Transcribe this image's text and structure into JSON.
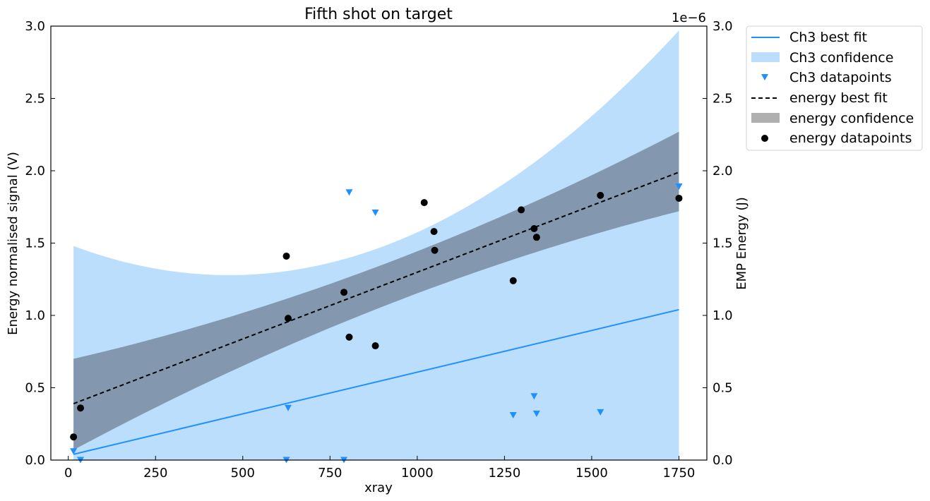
{
  "chart_data": {
    "type": "scatter",
    "title": "Fifth shot on target",
    "xlabel": "xray",
    "ylabel": "Energy normalised signal (V)",
    "ylabel_right": "EMP Energy (J)",
    "right_axis_offset": "1e−6",
    "xlim": [
      -50,
      1830
    ],
    "ylim": [
      0,
      3.0
    ],
    "ylim_right": [
      0,
      3.0
    ],
    "x_ticks": [
      0,
      250,
      500,
      750,
      1000,
      1250,
      1500,
      1750
    ],
    "x_tick_labels": [
      "0",
      "250",
      "500",
      "750",
      "1000",
      "1250",
      "1500",
      "1750"
    ],
    "y_ticks": [
      0,
      0.5,
      1.0,
      1.5,
      2.0,
      2.5,
      3.0
    ],
    "y_tick_labels": [
      "0.0",
      "0.5",
      "1.0",
      "1.5",
      "2.0",
      "2.5",
      "3.0"
    ],
    "y_right_ticks": [
      0,
      0.5,
      1.0,
      1.5,
      2.0,
      2.5,
      3.0
    ],
    "y_right_tick_labels": [
      "0.0",
      "0.5",
      "1.0",
      "1.5",
      "2.0",
      "2.5",
      "3.0"
    ],
    "grid": false,
    "legend_position": "outside-right-top",
    "colors": {
      "ch3": "#1e90ff",
      "ch3_band": "#bbdefc",
      "energy": "#000000",
      "energy_band_legend": "#b0b0b0",
      "energy_band_overlap": "#8398ae"
    },
    "series": [
      {
        "name": "Ch3 datapoints",
        "marker": "triangle-down",
        "x": [
          15,
          35,
          625,
          630,
          790,
          805,
          880,
          1275,
          1335,
          1342,
          1525,
          1750
        ],
        "y": [
          0.06,
          0.0,
          0.0,
          0.36,
          0.0,
          1.85,
          1.71,
          0.31,
          0.44,
          0.32,
          0.33,
          1.89
        ]
      },
      {
        "name": "Ch3 best fit",
        "line": "solid",
        "x": [
          15,
          1750
        ],
        "y": [
          0.04,
          1.04
        ]
      },
      {
        "name": "Ch3 confidence",
        "band": "quadratic",
        "x": [
          15,
          500,
          1750
        ],
        "lower": [
          0.0,
          0.0,
          0.0
        ],
        "upper": [
          1.48,
          1.28,
          2.97
        ]
      },
      {
        "name": "energy datapoints",
        "marker": "circle",
        "x": [
          15,
          35,
          625,
          630,
          790,
          805,
          880,
          1020,
          1048,
          1050,
          1275,
          1298,
          1335,
          1342,
          1525,
          1750
        ],
        "y": [
          0.16,
          0.36,
          1.41,
          0.98,
          1.16,
          0.85,
          0.79,
          1.78,
          1.58,
          1.45,
          1.24,
          1.73,
          1.6,
          1.54,
          1.83,
          1.81
        ]
      },
      {
        "name": "energy best fit",
        "line": "dashed",
        "x": [
          15,
          1750
        ],
        "y": [
          0.39,
          1.99
        ]
      },
      {
        "name": "energy confidence",
        "band": "quadratic",
        "x": [
          15,
          900,
          1750
        ],
        "lower": [
          0.07,
          1.06,
          1.72
        ],
        "upper": [
          0.7,
          1.35,
          2.27
        ]
      }
    ],
    "legend": [
      "Ch3 best fit",
      "Ch3 confidence",
      "Ch3 datapoints",
      "energy best fit",
      "energy confidence",
      "energy datapoints"
    ]
  }
}
